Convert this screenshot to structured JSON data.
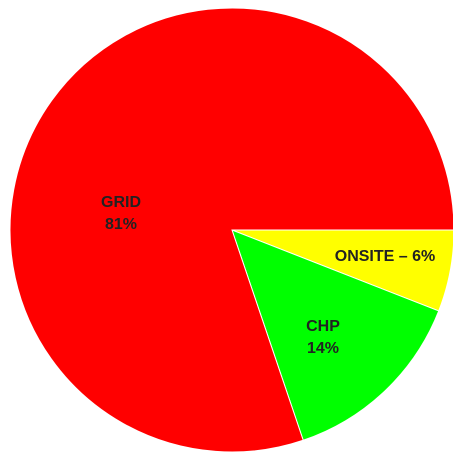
{
  "chart_data": {
    "type": "pie",
    "categories": [
      "GRID",
      "CHP",
      "ONSITE – 6%"
    ],
    "values": [
      81,
      14,
      6
    ],
    "value_labels": [
      "81%",
      "14%",
      null
    ],
    "colors": [
      "#ff0000",
      "#00ff00",
      "#ffff00"
    ]
  }
}
